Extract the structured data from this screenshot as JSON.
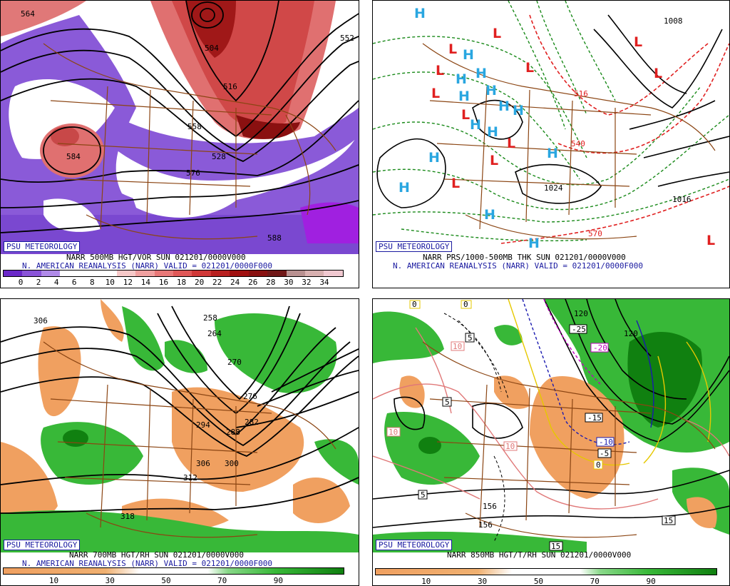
{
  "panels": [
    {
      "badge": "PSU METEOROLOGY",
      "caption_line1": "NARR 500MB HGT/VOR SUN 021201/0000V000",
      "caption_line2": "N. AMERICAN REANALYSIS (NARR) VALID = 021201/0000F000",
      "labels": [
        "564",
        "552",
        "504",
        "516",
        "558",
        "576",
        "584",
        "588",
        "528"
      ],
      "colorbar_ticks": [
        "0",
        "2",
        "4",
        "6",
        "8",
        "10",
        "12",
        "14",
        "16",
        "18",
        "20",
        "22",
        "24",
        "26",
        "28",
        "30",
        "32",
        "34"
      ],
      "colorbar_colors": [
        "#6a28c8",
        "#8a54d8",
        "#b08ae8",
        "#ffffff",
        "#ffffff",
        "#ffffff",
        "#f6c8c8",
        "#f0a0a0",
        "#e87878",
        "#e05858",
        "#d03838",
        "#b82020",
        "#a01010",
        "#881010",
        "#701818",
        "#b89090",
        "#d8b0b0",
        "#f0c8d0"
      ]
    },
    {
      "badge": "PSU METEOROLOGY",
      "caption_line1": "NARR PRS/1000-500MB THK SUN 021201/0000V000",
      "caption_line2": "N. AMERICAN REANALYSIS (NARR) VALID = 021201/0000F000",
      "labels": [
        "1024",
        "1016",
        "1008",
        "540",
        "570",
        "516"
      ]
    },
    {
      "badge": "PSU METEOROLOGY",
      "caption_line1": "NARR 700MB HGT/RH SUN 021201/0000V000",
      "caption_line2": "N. AMERICAN REANALYSIS (NARR) VALID = 021201/0000F000",
      "labels": [
        "306",
        "258",
        "264",
        "270",
        "276",
        "282",
        "288",
        "294",
        "300",
        "306",
        "312",
        "318"
      ],
      "colorbar_ticks": [
        "10",
        "30",
        "50",
        "70",
        "90"
      ]
    },
    {
      "badge": "PSU METEOROLOGY",
      "caption_line1": "NARR 850MB HGT/T/RH SUN 021201/0000V000",
      "caption_line2": "",
      "labels": [
        "120",
        "-25",
        "-20",
        "-15",
        "-10",
        "-5",
        "0",
        "5",
        "10",
        "15",
        "156"
      ],
      "colorbar_ticks": [
        "10",
        "30",
        "50",
        "70",
        "90"
      ]
    }
  ],
  "colors": {
    "moisture_dry": "#f0a060",
    "moisture_wet": "#38b838",
    "moisture_wet_dark": "#108010",
    "vort_neg": "#7a48d0",
    "vort_pos": "#d84848",
    "border": "#8b4513",
    "high_symbol": "#29a6e0",
    "low_symbol": "#e02020",
    "thickness": "#1a8a1a",
    "thickness_warm": "#e02020"
  },
  "symbols": {
    "highs": [
      "H",
      "H",
      "H",
      "H",
      "H",
      "H",
      "H",
      "H",
      "H",
      "H",
      "H",
      "H",
      "H",
      "H",
      "H"
    ],
    "lows": [
      "L",
      "L",
      "L",
      "L",
      "L",
      "L",
      "L",
      "L",
      "L",
      "L",
      "L",
      "L"
    ]
  }
}
